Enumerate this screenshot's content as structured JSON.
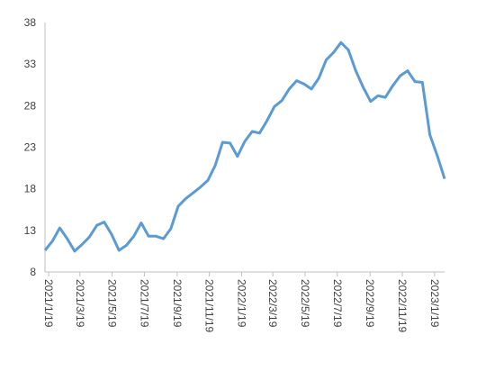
{
  "chart_data": {
    "type": "line",
    "x": [
      "2021/1/12",
      "2021/1/26",
      "2021/2/9",
      "2021/2/23",
      "2021/3/9",
      "2021/3/23",
      "2021/4/6",
      "2021/4/20",
      "2021/5/4",
      "2021/5/18",
      "2021/6/1",
      "2021/6/15",
      "2021/6/29",
      "2021/7/13",
      "2021/7/27",
      "2021/8/10",
      "2021/8/24",
      "2021/9/7",
      "2021/9/21",
      "2021/10/5",
      "2021/10/19",
      "2021/11/2",
      "2021/11/16",
      "2021/11/30",
      "2021/12/14",
      "2021/12/28",
      "2022/1/11",
      "2022/1/25",
      "2022/2/8",
      "2022/2/22",
      "2022/3/8",
      "2022/3/22",
      "2022/4/5",
      "2022/4/19",
      "2022/5/3",
      "2022/5/17",
      "2022/5/31",
      "2022/6/14",
      "2022/6/28",
      "2022/7/12",
      "2022/7/26",
      "2022/8/9",
      "2022/8/23",
      "2022/9/6",
      "2022/9/20",
      "2022/10/4",
      "2022/10/18",
      "2022/11/1",
      "2022/11/15",
      "2022/11/29",
      "2022/12/13",
      "2022/12/27",
      "2023/1/10",
      "2023/1/24",
      "2023/2/7"
    ],
    "values": [
      10.6,
      11.7,
      13.3,
      12.0,
      10.5,
      11.3,
      12.2,
      13.6,
      14.0,
      12.5,
      10.6,
      11.2,
      12.3,
      13.9,
      12.3,
      12.3,
      12.0,
      13.2,
      15.9,
      16.8,
      17.5,
      18.2,
      19.0,
      20.8,
      23.6,
      23.5,
      21.9,
      23.7,
      24.9,
      24.7,
      26.2,
      27.9,
      28.6,
      30.0,
      31.0,
      30.6,
      30.0,
      31.3,
      33.5,
      34.4,
      35.6,
      34.7,
      32.2,
      30.2,
      28.5,
      29.2,
      29.0,
      30.4,
      31.6,
      32.2,
      30.9,
      30.8,
      24.5,
      22.0,
      19.2
    ],
    "color": "#5b9bd5",
    "xlim": [
      "2021/1/12",
      "2023/2/7"
    ],
    "xticks": [
      "2021/1/19",
      "2021/3/19",
      "2021/5/19",
      "2021/7/19",
      "2021/9/19",
      "2021/11/19",
      "2022/1/19",
      "2022/3/19",
      "2022/5/19",
      "2022/7/19",
      "2022/9/19",
      "2022/11/19",
      "2023/1/19"
    ],
    "ylim": [
      8,
      38
    ],
    "yticks": [
      8,
      13,
      18,
      23,
      28,
      33,
      38
    ],
    "grid": false
  }
}
